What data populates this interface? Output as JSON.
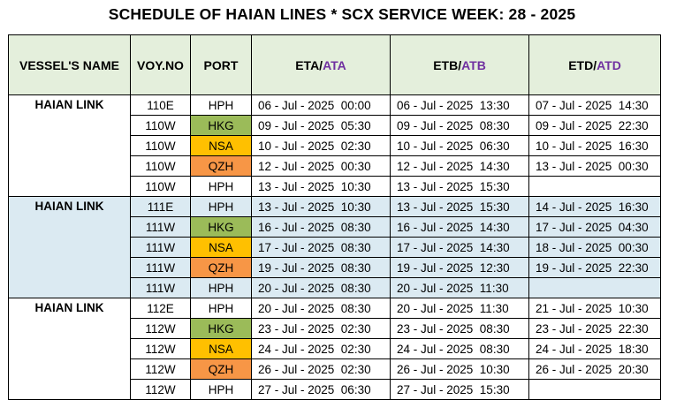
{
  "title": "SCHEDULE OF HAIAN LINES * SCX SERVICE WEEK: 28 - 2025",
  "headers": {
    "vessel": "VESSEL'S NAME",
    "voy": "VOY.NO",
    "port": "PORT",
    "eta_a": "ETA/",
    "eta_b": "ATA",
    "etb_a": "ETB/",
    "etb_b": "ATB",
    "etd_a": "ETD/",
    "etd_b": "ATD"
  },
  "colors": {
    "hkg": "#9bbb59",
    "nsa": "#ffc000",
    "qzh": "#f79646",
    "header_bg": "#e4efdc",
    "band_blue": "#dbeaf2",
    "actual_purple": "#7030a0"
  },
  "groups": [
    {
      "vessel": "HAIAN LINK",
      "rows": [
        {
          "voy": "110E",
          "port": "HPH",
          "eta": "06 - Jul - 2025  00:00",
          "etb": "06 - Jul - 2025  13:30",
          "etd": "07 - Jul - 2025  14:30"
        },
        {
          "voy": "110W",
          "port": "HKG",
          "eta": "09 - Jul - 2025  05:30",
          "etb": "09 - Jul - 2025  08:30",
          "etd": "09 - Jul - 2025  22:30"
        },
        {
          "voy": "110W",
          "port": "NSA",
          "eta": "10 - Jul - 2025  02:30",
          "etb": "10 - Jul - 2025  06:30",
          "etd": "10 - Jul - 2025  16:30"
        },
        {
          "voy": "110W",
          "port": "QZH",
          "eta": "12 - Jul - 2025  00:30",
          "etb": "12 - Jul - 2025  14:30",
          "etd": "13 - Jul - 2025  00:30"
        },
        {
          "voy": "110W",
          "port": "HPH",
          "eta": "13 - Jul - 2025  10:30",
          "etb": "13 - Jul - 2025  15:30",
          "etd": ""
        }
      ]
    },
    {
      "vessel": "HAIAN LINK",
      "rows": [
        {
          "voy": "111E",
          "port": "HPH",
          "eta": "13 - Jul - 2025  10:30",
          "etb": "13 - Jul - 2025  15:30",
          "etd": "14 - Jul - 2025  16:30"
        },
        {
          "voy": "111W",
          "port": "HKG",
          "eta": "16 - Jul - 2025  08:30",
          "etb": "16 - Jul - 2025  14:30",
          "etd": "17 - Jul - 2025  04:30"
        },
        {
          "voy": "111W",
          "port": "NSA",
          "eta": "17 - Jul - 2025  08:30",
          "etb": "17 - Jul - 2025  14:30",
          "etd": "18 - Jul - 2025  00:30"
        },
        {
          "voy": "111W",
          "port": "QZH",
          "eta": "19 - Jul - 2025  08:30",
          "etb": "19 - Jul - 2025  12:30",
          "etd": "19 - Jul - 2025  22:30"
        },
        {
          "voy": "111W",
          "port": "HPH",
          "eta": "20 - Jul - 2025  08:30",
          "etb": "20 - Jul - 2025  11:30",
          "etd": ""
        }
      ]
    },
    {
      "vessel": "HAIAN LINK",
      "rows": [
        {
          "voy": "112E",
          "port": "HPH",
          "eta": "20 - Jul - 2025  08:30",
          "etb": "20 - Jul - 2025  11:30",
          "etd": "21 - Jul - 2025  10:30"
        },
        {
          "voy": "112W",
          "port": "HKG",
          "eta": "23 - Jul - 2025  02:30",
          "etb": "23 - Jul - 2025  08:30",
          "etd": "23 - Jul - 2025  22:30"
        },
        {
          "voy": "112W",
          "port": "NSA",
          "eta": "24 - Jul - 2025  02:30",
          "etb": "24 - Jul - 2025  08:30",
          "etd": "24 - Jul - 2025  18:30"
        },
        {
          "voy": "112W",
          "port": "QZH",
          "eta": "26 - Jul - 2025  02:30",
          "etb": "26 - Jul - 2025  10:30",
          "etd": "26 - Jul - 2025  20:30"
        },
        {
          "voy": "112W",
          "port": "HPH",
          "eta": "27 - Jul - 2025  06:30",
          "etb": "27 - Jul - 2025  15:30",
          "etd": ""
        }
      ]
    }
  ]
}
